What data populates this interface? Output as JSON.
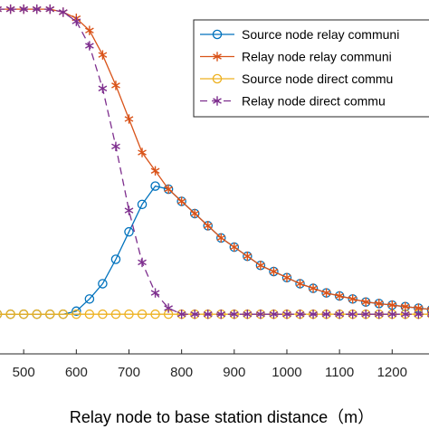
{
  "chart_data": {
    "type": "line",
    "xlabel": "Relay node to base station distance（m）",
    "ylabel": "",
    "xlim": [
      455,
      1270
    ],
    "ylim": [
      -0.13,
      1.03
    ],
    "xticks": [
      500,
      600,
      700,
      800,
      900,
      1000,
      1100,
      1200
    ],
    "xtick_labels": [
      "500",
      "600",
      "700",
      "800",
      "900",
      "1000",
      "1100",
      "1200"
    ],
    "grid": false,
    "legend_position": "top-right",
    "series": [
      {
        "name": "Source node relay communi",
        "color": "#0072BD",
        "marker": "circle",
        "line": "solid",
        "x": [
          450,
          475,
          500,
          525,
          550,
          575,
          600,
          625,
          650,
          675,
          700,
          725,
          750,
          775,
          800,
          825,
          850,
          875,
          900,
          925,
          950,
          975,
          1000,
          1025,
          1050,
          1075,
          1100,
          1125,
          1150,
          1175,
          1200,
          1225,
          1250,
          1275
        ],
        "y": [
          0.0,
          0.0,
          0.0,
          0.0,
          0.0,
          0.0,
          0.01,
          0.05,
          0.1,
          0.18,
          0.27,
          0.36,
          0.42,
          0.41,
          0.37,
          0.33,
          0.29,
          0.25,
          0.22,
          0.19,
          0.16,
          0.14,
          0.12,
          0.1,
          0.085,
          0.07,
          0.06,
          0.05,
          0.04,
          0.035,
          0.03,
          0.025,
          0.02,
          0.015
        ]
      },
      {
        "name": "Relay node relay communi",
        "color": "#D95319",
        "marker": "asterisk",
        "line": "solid",
        "x": [
          450,
          475,
          500,
          525,
          550,
          575,
          600,
          625,
          650,
          675,
          700,
          725,
          750,
          775,
          800,
          825,
          850,
          875,
          900,
          925,
          950,
          975,
          1000,
          1025,
          1050,
          1075,
          1100,
          1125,
          1150,
          1175,
          1200,
          1225,
          1250,
          1275
        ],
        "y": [
          1.0,
          1.0,
          1.0,
          1.0,
          1.0,
          0.99,
          0.97,
          0.93,
          0.85,
          0.75,
          0.64,
          0.53,
          0.47,
          0.41,
          0.37,
          0.33,
          0.29,
          0.25,
          0.22,
          0.19,
          0.16,
          0.14,
          0.12,
          0.1,
          0.085,
          0.07,
          0.06,
          0.05,
          0.04,
          0.035,
          0.03,
          0.025,
          0.02,
          0.015
        ]
      },
      {
        "name": "Source node direct commu",
        "color": "#EDB120",
        "marker": "circle",
        "line": "solid",
        "x": [
          450,
          475,
          500,
          525,
          550,
          575,
          600,
          625,
          650,
          675,
          700,
          725,
          750,
          775,
          800,
          825,
          850,
          875,
          900,
          925,
          950,
          975,
          1000,
          1025,
          1050,
          1075,
          1100,
          1125,
          1150,
          1175,
          1200,
          1225,
          1250,
          1275
        ],
        "y": [
          0.0,
          0.0,
          0.0,
          0.0,
          0.0,
          0.0,
          0.0,
          0.0,
          0.0,
          0.0,
          0.0,
          0.0,
          0.0,
          0.0,
          0.0,
          0.0,
          0.0,
          0.0,
          0.0,
          0.0,
          0.0,
          0.0,
          0.0,
          0.0,
          0.0,
          0.0,
          0.0,
          0.0,
          0.0,
          0.0,
          0.0,
          0.0,
          0.0,
          0.0
        ]
      },
      {
        "name": "Relay node direct commu",
        "color": "#7E2F8E",
        "marker": "asterisk",
        "line": "dashed",
        "x": [
          450,
          475,
          500,
          525,
          550,
          575,
          600,
          625,
          650,
          675,
          700,
          725,
          750,
          775,
          800,
          825,
          850,
          875,
          900,
          925,
          950,
          975,
          1000,
          1025,
          1050,
          1075,
          1100,
          1125,
          1150,
          1175,
          1200,
          1225,
          1250,
          1275
        ],
        "y": [
          1.0,
          1.0,
          1.0,
          1.0,
          1.0,
          0.99,
          0.96,
          0.88,
          0.74,
          0.55,
          0.34,
          0.17,
          0.07,
          0.02,
          0.0,
          0.0,
          0.0,
          0.0,
          0.0,
          0.0,
          0.0,
          0.0,
          0.0,
          0.0,
          0.0,
          0.0,
          0.0,
          0.0,
          0.0,
          0.0,
          0.0,
          0.0,
          0.0,
          0.0
        ]
      }
    ]
  }
}
